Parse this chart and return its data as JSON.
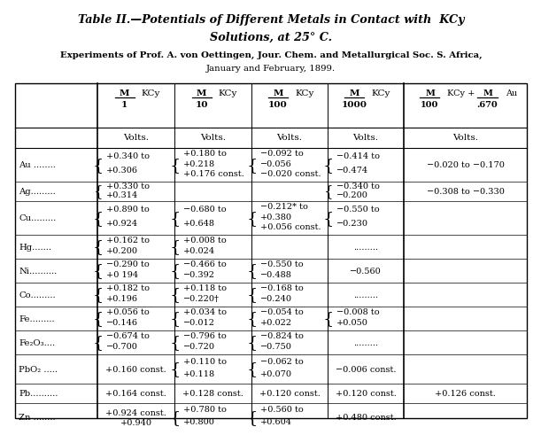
{
  "title_line1": "Table II.—Potentials of Different Metals in Contact with  KCy",
  "title_line2": "Solutions, at 25° C.",
  "subtitle_line1": "Experiments of Prof. A. von Oettingen, Jour. Chem. and Metallurgical Soc. S. Africa,",
  "subtitle_line2": "January and February, 1899.",
  "rows": [
    {
      "metal": "Au ........",
      "c1": "+0.340 to\n+0.306",
      "c2": "+0.180 to\n+0.218\n+0.176 const.",
      "c3": "−0.092 to\n−0.056\n−0.020 const.",
      "c4": "−0.414 to\n−0.474",
      "c5": "−0.020 to −0.170"
    },
    {
      "metal": "Ag.........",
      "c1": "+0.330 to\n+0.314",
      "c2": "",
      "c3": "",
      "c4": "−0.340 to\n−0.200",
      "c5": "−0.308 to −0.330"
    },
    {
      "metal": "Cu.........",
      "c1": "+0.890 to\n+0.924",
      "c2": "−0.680 to\n+0.648",
      "c3": "−0.212* to\n+0.380\n+0.056 const.",
      "c4": "−0.550 to\n−0.230",
      "c5": ""
    },
    {
      "metal": "Hg.......",
      "c1": "+0.162 to\n+0.200",
      "c2": "+0.008 to\n+0.024",
      "c3": "",
      "c4": ".........",
      "c5": ""
    },
    {
      "metal": "Ni..........",
      "c1": "−0.290 to\n+0 194",
      "c2": "−0.466 to\n−0.392",
      "c3": "−0.550 to\n−0.488",
      "c4": "−0.560",
      "c5": ""
    },
    {
      "metal": "Co.........",
      "c1": "+0.182 to\n+0.196",
      "c2": "+0.118 to\n−0.220†",
      "c3": "−0.168 to\n−0.240",
      "c4": ".........",
      "c5": ""
    },
    {
      "metal": "Fe.........",
      "c1": "+0.056 to\n−0.146",
      "c2": "+0.034 to\n−0.012",
      "c3": "−0.054 to\n+0.022",
      "c4": "−0.008 to\n+0.050",
      "c5": ""
    },
    {
      "metal": "Fe₂O₃....",
      "c1": "−0.674 to\n−0.700",
      "c2": "−0.796 to\n−0.720",
      "c3": "−0.824 to\n−0.750",
      "c4": ".........",
      "c5": ""
    },
    {
      "metal": "PbO₂ .....",
      "c1": "+0.160 const.",
      "c2": "+0.110 to\n+0.118",
      "c3": "−0.062 to\n+0.070",
      "c4": "−0.006 const.",
      "c5": ""
    },
    {
      "metal": "Pb..........",
      "c1": "+0.164 const.",
      "c2": "+0.128 const.",
      "c3": "+0.120 const.",
      "c4": "+0.120 const.",
      "c5": "+0.126 const."
    },
    {
      "metal": "Zn ........",
      "c1": "+0.924 const.\n+0.940",
      "c2": "+0.780 to\n+0.800",
      "c3": "+0.560 to\n+0.604",
      "c4": "+0.480 const.",
      "c5": ""
    }
  ],
  "bg_color": "#ffffff",
  "text_color": "#000000"
}
